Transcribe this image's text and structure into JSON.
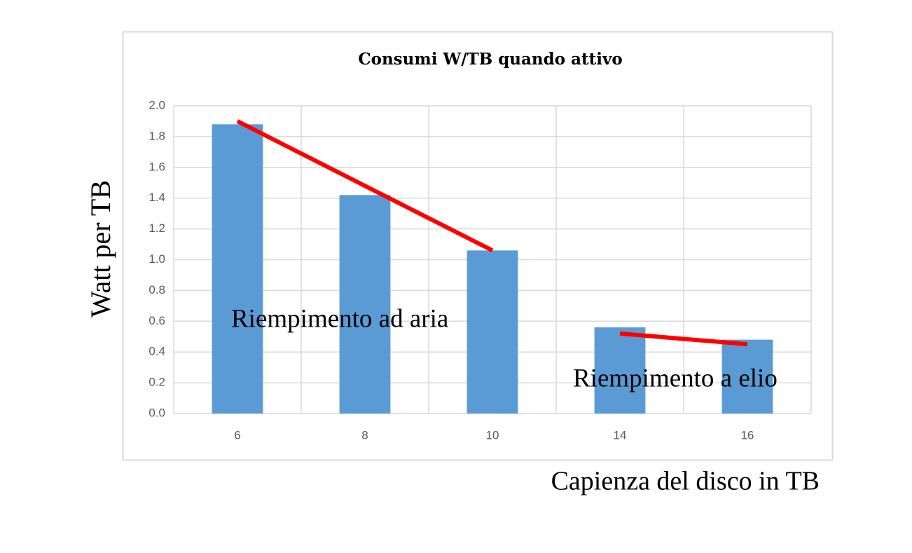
{
  "chart_data": {
    "type": "bar",
    "title": "Consumi W/TB quando attivo",
    "x_label": "Capienza del disco in TB",
    "y_label": "Watt per TB",
    "categories": [
      "6",
      "8",
      "10",
      "14",
      "16"
    ],
    "values": [
      1.88,
      1.42,
      1.06,
      0.56,
      0.48
    ],
    "color": "#5b9bd5",
    "ylim": [
      0,
      2
    ],
    "yticks": [
      {
        "value": 0,
        "label": "0.0"
      },
      0.2,
      0.4,
      0.6,
      0.8,
      {
        "value": 1,
        "label": "1.0"
      },
      1.2,
      1.4,
      1.6,
      1.8,
      {
        "value": 2,
        "label": "2.0"
      }
    ],
    "grid": true,
    "trend_lines": [
      {
        "color": "#ff0000",
        "values": [
          1.9,
          1.48,
          1.06,
          null,
          null
        ]
      },
      {
        "color": "#ff0000",
        "values": [
          null,
          null,
          null,
          0.52,
          0.45
        ]
      }
    ],
    "annotations": [
      "Riempimento ad aria",
      "Riempimento a elio"
    ]
  }
}
